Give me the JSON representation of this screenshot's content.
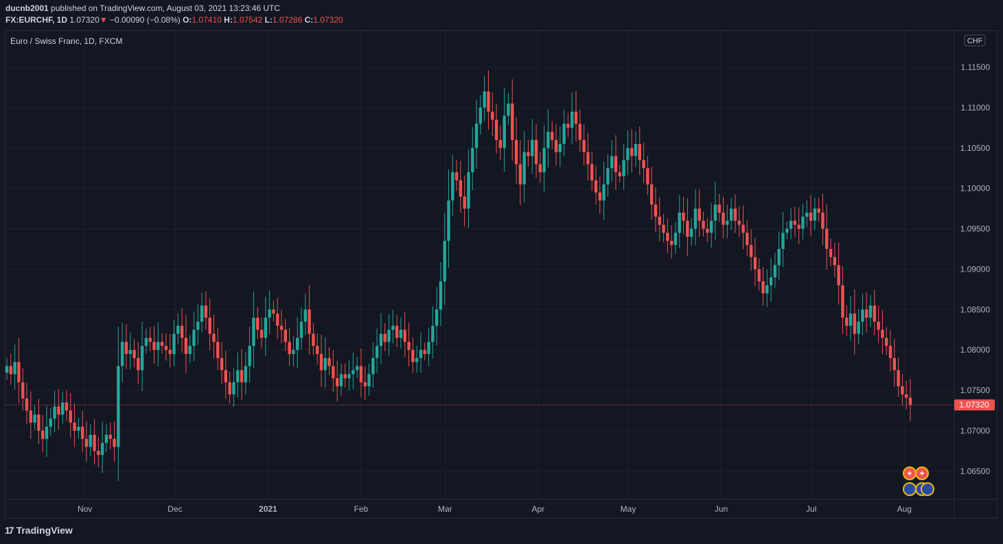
{
  "header": {
    "user": "ducnb2001",
    "published": "published on TradingView.com, August 03, 2021 13:23:46 UTC",
    "symbol": "FX:EURCHF, 1D",
    "last": "1.07320",
    "change": "−0.00090 (−0.08%)",
    "o_label": "O:",
    "o": "1.07410",
    "h_label": "H:",
    "h": "1.07542",
    "l_label": "L:",
    "l": "1.07286",
    "c_label": "C:",
    "c": "1.07320"
  },
  "legend_title": "Euro / Swiss Franc, 1D, FXCM",
  "currency_badge": "CHF",
  "price_label": "1.07320",
  "brand": "TradingView",
  "colors": {
    "up": "#26a69a",
    "down": "#ef5350",
    "bg": "#131722",
    "grid": "#1e222d",
    "text": "#b2b5be"
  },
  "chart_data": {
    "type": "candlestick",
    "y_ticks": [
      "1.06500",
      "1.07000",
      "1.07500",
      "1.08000",
      "1.08500",
      "1.09000",
      "1.09500",
      "1.10000",
      "1.10500",
      "1.11000",
      "1.11500"
    ],
    "ylim": [
      1.0615,
      1.1195
    ],
    "x_ticks": [
      "Nov",
      "Dec",
      "2021",
      "Feb",
      "Mar",
      "Apr",
      "May",
      "Jun",
      "Jul",
      "Aug"
    ],
    "last_price": 1.0732,
    "period": {
      "first": "2020-10-06",
      "last": "2021-08-03"
    },
    "close": [
      1.078,
      1.077,
      1.0785,
      1.076,
      1.074,
      1.0725,
      1.071,
      1.072,
      1.07,
      1.069,
      1.0705,
      1.0715,
      1.073,
      1.072,
      1.0735,
      1.0725,
      1.071,
      1.07,
      1.0705,
      1.069,
      1.068,
      1.0695,
      1.0675,
      1.067,
      1.0685,
      1.0695,
      1.069,
      1.068,
      1.078,
      1.081,
      1.0795,
      1.08,
      1.079,
      1.0775,
      1.0805,
      1.0815,
      1.081,
      1.08,
      1.081,
      1.0805,
      1.08,
      1.0795,
      1.082,
      1.083,
      1.0815,
      1.0795,
      1.0805,
      1.0825,
      1.0835,
      1.0855,
      1.084,
      1.082,
      1.081,
      1.079,
      1.0775,
      1.076,
      1.0745,
      1.076,
      1.0775,
      1.076,
      1.078,
      1.0805,
      1.084,
      1.0825,
      1.0815,
      1.084,
      1.085,
      1.0845,
      1.083,
      1.0825,
      1.081,
      1.0795,
      1.08,
      1.0815,
      1.0835,
      1.085,
      1.082,
      1.0805,
      1.0795,
      1.0775,
      1.079,
      1.078,
      1.0765,
      1.0755,
      1.077,
      1.0765,
      1.077,
      1.0775,
      1.078,
      1.076,
      1.0755,
      1.077,
      1.079,
      1.0805,
      1.082,
      1.081,
      1.0825,
      1.083,
      1.0815,
      1.0825,
      1.081,
      1.08,
      1.0785,
      1.079,
      1.08,
      1.0795,
      1.081,
      1.083,
      1.085,
      1.0885,
      1.0935,
      1.0985,
      1.102,
      1.101,
      1.099,
      1.0975,
      1.102,
      1.105,
      1.108,
      1.11,
      1.112,
      1.1095,
      1.1085,
      1.106,
      1.105,
      1.109,
      1.1105,
      1.106,
      1.103,
      1.1005,
      1.1045,
      1.104,
      1.106,
      1.103,
      1.102,
      1.105,
      1.107,
      1.106,
      1.1045,
      1.1055,
      1.108,
      1.1075,
      1.1095,
      1.108,
      1.106,
      1.1045,
      1.103,
      1.101,
      1.0995,
      1.0985,
      1.1005,
      1.1025,
      1.104,
      1.102,
      1.1015,
      1.1035,
      1.105,
      1.104,
      1.1055,
      1.1035,
      1.1025,
      1.1005,
      1.098,
      1.0965,
      1.0955,
      1.0945,
      1.0935,
      1.093,
      1.0945,
      1.097,
      1.096,
      1.094,
      1.095,
      1.0975,
      1.096,
      1.095,
      1.0945,
      1.096,
      1.098,
      1.097,
      1.0955,
      1.096,
      1.0975,
      1.096,
      1.0955,
      1.0945,
      1.093,
      1.0915,
      1.09,
      1.0885,
      1.087,
      1.088,
      1.089,
      1.0905,
      1.0925,
      1.0945,
      1.095,
      1.096,
      1.0955,
      1.095,
      1.0965,
      1.097,
      1.096,
      1.0975,
      1.097,
      1.095,
      1.0925,
      1.0915,
      1.0905,
      1.088,
      1.084,
      1.083,
      1.0845,
      1.082,
      1.0835,
      1.085,
      1.084,
      1.0855,
      1.0835,
      1.0825,
      1.0815,
      1.0805,
      1.079,
      1.0775,
      1.0755,
      1.0745,
      1.0741,
      1.0732
    ]
  }
}
